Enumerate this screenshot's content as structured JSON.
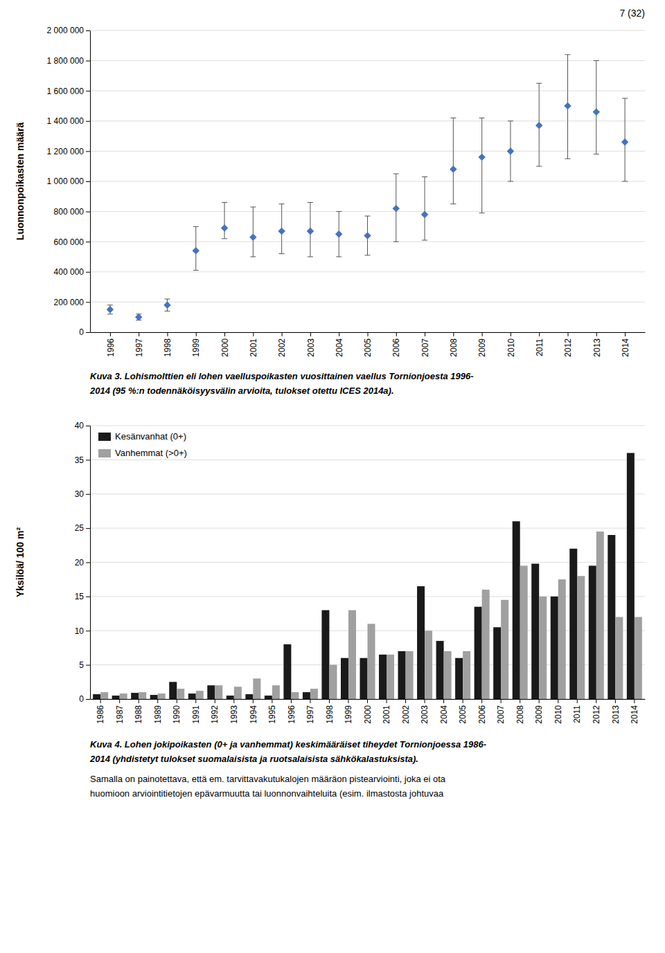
{
  "page_label": "7 (32)",
  "text": [
    "Samalla on painotettava, että em. tarvittavakutukalojen määräon pistearviointi, joka ei ota",
    "huomioon arviointitietojen epävarmuutta tai luonnonvaihteluita (esim. ilmastosta johtuvaa"
  ],
  "chart_data": [
    {
      "type": "scatter",
      "ylabel": "Luonnonpoikasten määrä",
      "x": [
        1996,
        1997,
        1998,
        1999,
        2000,
        2001,
        2002,
        2003,
        2004,
        2005,
        2006,
        2007,
        2008,
        2009,
        2010,
        2011,
        2012,
        2013,
        2014
      ],
      "values": [
        150000,
        100000,
        180000,
        540000,
        690000,
        630000,
        670000,
        670000,
        650000,
        640000,
        820000,
        780000,
        1080000,
        1160000,
        1200000,
        1370000,
        1500000,
        1460000,
        1260000
      ],
      "err_low": [
        30000,
        20000,
        40000,
        130000,
        70000,
        130000,
        150000,
        170000,
        150000,
        130000,
        220000,
        170000,
        230000,
        370000,
        200000,
        270000,
        350000,
        280000,
        260000
      ],
      "err_high": [
        30000,
        20000,
        40000,
        160000,
        170000,
        200000,
        180000,
        190000,
        150000,
        130000,
        230000,
        250000,
        340000,
        260000,
        200000,
        280000,
        340000,
        340000,
        290000
      ],
      "color": "#4472C4",
      "marker": "diamond",
      "xlim": [
        1995.3,
        2014.7
      ],
      "xticks": [
        1996,
        1997,
        1998,
        1999,
        2000,
        2001,
        2002,
        2003,
        2004,
        2005,
        2006,
        2007,
        2008,
        2009,
        2010,
        2011,
        2012,
        2013,
        2014
      ],
      "ylim": [
        0,
        2000000
      ],
      "yticks": [
        0,
        {
          "value": 200000,
          "label": "200 000"
        },
        {
          "value": 400000,
          "label": "400 000"
        },
        {
          "value": 600000,
          "label": "600 000"
        },
        {
          "value": 800000,
          "label": "800 000"
        },
        {
          "value": 1000000,
          "label": "1 000 000"
        },
        {
          "value": 1200000,
          "label": "1 200 000"
        },
        {
          "value": 1400000,
          "label": "1 400 000"
        },
        {
          "value": 1600000,
          "label": "1 600 000"
        },
        {
          "value": 1800000,
          "label": "1 800 000"
        },
        {
          "value": 2000000,
          "label": "2 000 000"
        }
      ],
      "grid": true,
      "annotations": [
        "Kuva 3. Lohismolttien eli lohen vaelluspoikasten vuosittainen vaellus Tornionjoesta 1996-",
        "2014 (95 %:n todennäköisyysvälin arvioita, tulokset otettu ICES 2014a)."
      ]
    },
    {
      "type": "bar",
      "ylabel": "Yksilöä/ 100 m²",
      "categories": [
        "1986",
        "1987",
        "1988",
        "1989",
        "1990",
        "1991",
        "1992",
        "1993",
        "1994",
        "1995",
        "1996",
        "1997",
        "1998",
        "1999",
        "2000",
        "2001",
        "2002",
        "2003",
        "2004",
        "2005",
        "2006",
        "2007",
        "2008",
        "2009",
        "2010",
        "2011",
        "2012",
        "2013",
        "2014"
      ],
      "series": [
        {
          "name": "Kesänvanhat (0+)",
          "color": "#1a1a1a",
          "values": [
            0.7,
            0.5,
            0.9,
            0.6,
            2.5,
            0.8,
            2.0,
            0.5,
            0.7,
            0.5,
            8.0,
            1.0,
            13.0,
            6.0,
            6.0,
            6.5,
            7.0,
            16.5,
            8.5,
            6.0,
            13.5,
            10.5,
            26.0,
            19.8,
            15.0,
            22.0,
            19.5,
            24.0,
            36.0
          ]
        },
        {
          "name": "Vanhemmat (>0+)",
          "color": "#a0a0a0",
          "values": [
            1.0,
            0.8,
            1.0,
            0.8,
            1.5,
            1.2,
            2.0,
            1.8,
            3.0,
            2.0,
            1.0,
            1.5,
            5.0,
            13.0,
            11.0,
            6.5,
            7.0,
            10.0,
            7.0,
            7.0,
            16.0,
            14.5,
            19.5,
            15.0,
            17.5,
            18.0,
            24.5,
            12.0,
            12.0
          ]
        }
      ],
      "ylim": [
        0,
        40
      ],
      "yticks": [
        0,
        5,
        10,
        15,
        20,
        25,
        30,
        35,
        40
      ],
      "grid": true,
      "legend": "upper left",
      "annotations": [
        "Kuva 4. Lohen jokipoikasten (0+ ja vanhemmat) keskimääräiset tiheydet  Tornionjoessa 1986-",
        "2014 (yhdistetyt tulokset suomalaisista ja ruotsalaisista sähkökalastuksista)."
      ]
    }
  ]
}
